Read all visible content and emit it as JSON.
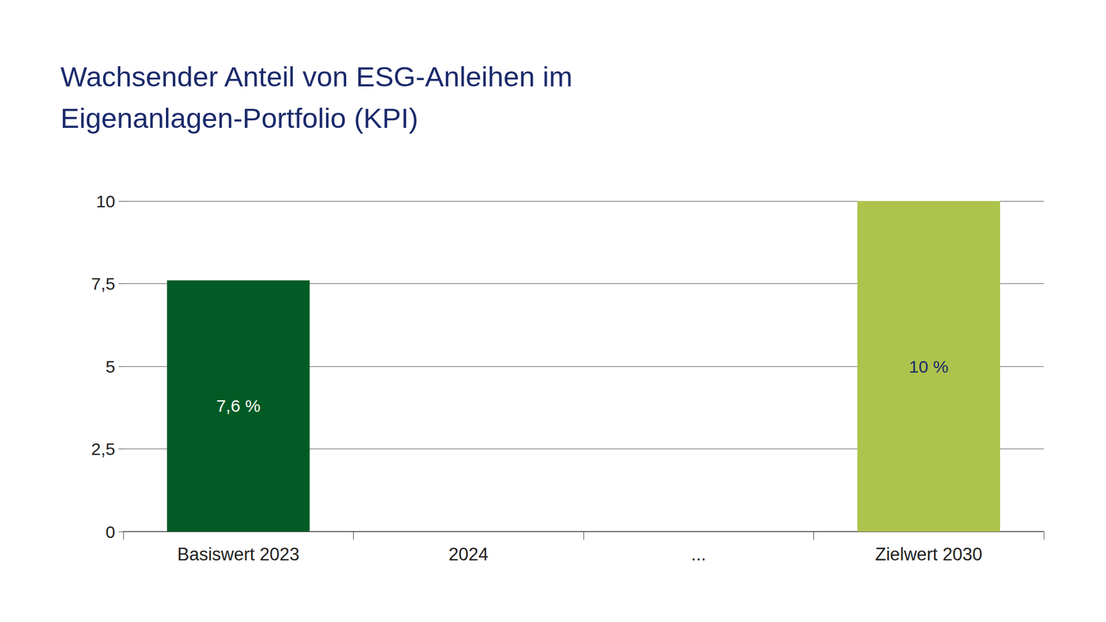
{
  "chart_data": {
    "type": "bar",
    "title": "Wachsender Anteil von ESG-Anleihen im Eigenanlagen-Portfolio (KPI)",
    "categories": [
      "Basiswert 2023",
      "2024",
      "...",
      "Zielwert 2030"
    ],
    "values": [
      7.6,
      null,
      null,
      10
    ],
    "value_labels": [
      "7,6 %",
      null,
      null,
      "10 %"
    ],
    "colors": [
      "#025b25",
      "#025b25",
      "#025b25",
      "#adc34b"
    ],
    "ylim": [
      0,
      10
    ],
    "yticks": [
      0,
      {
        "value": 2.5,
        "label": "2,5"
      },
      5,
      {
        "value": 7.5,
        "label": "7,5"
      },
      10
    ],
    "grid": true,
    "data_labels": true
  }
}
